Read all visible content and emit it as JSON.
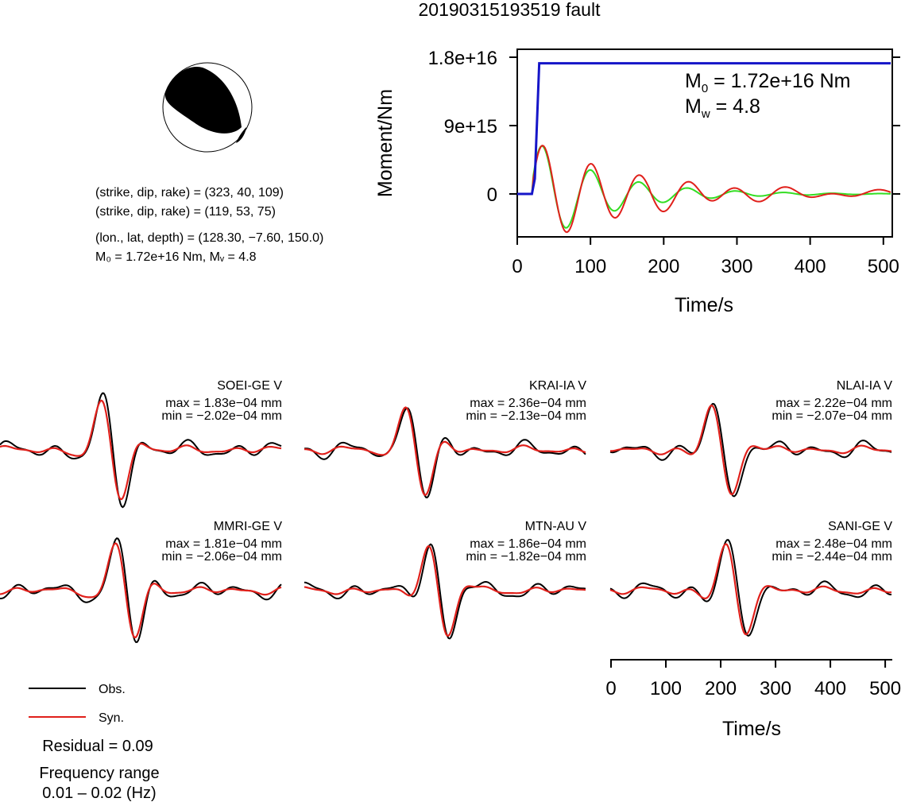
{
  "title": "20190315193519 fault",
  "mechanism": {
    "line1": "(strike, dip, rake) = (323, 40, 109)",
    "line2": "(strike, dip, rake) = (119, 53, 75)",
    "line3": "(lon., lat, depth) = (128.30, −7.60, 150.0)",
    "line4_m0": "M₀ = 1.72e+16 Nm, Mᵥ = 4.8"
  },
  "moment_panel": {
    "m0_label": "M",
    "m0_sub": "0",
    "m0_value": " = 1.72e+16 Nm",
    "mw_label": "M",
    "mw_sub": "w",
    "mw_value": " = 4.8",
    "ylabel": "Moment/Nm",
    "xlabel": "Time/s",
    "yticks": [
      "1.8e+16",
      "9e+15",
      "0"
    ],
    "xticks": [
      "0",
      "100",
      "200",
      "300",
      "400",
      "500"
    ]
  },
  "wave_axis": {
    "xlabel": "Time/s",
    "xticks": [
      "0",
      "100",
      "200",
      "300",
      "400",
      "500"
    ]
  },
  "stations": [
    {
      "name": "SOEI-GE V",
      "max": "max = 1.83e−04 mm",
      "min": "min = −2.02e−04 mm"
    },
    {
      "name": "KRAI-IA V",
      "max": "max = 2.36e−04 mm",
      "min": "min = −2.13e−04 mm"
    },
    {
      "name": "NLAI-IA V",
      "max": "max = 2.22e−04 mm",
      "min": "min = −2.07e−04 mm"
    },
    {
      "name": "MMRI-GE V",
      "max": "max = 1.81e−04 mm",
      "min": "min = −2.06e−04 mm"
    },
    {
      "name": "MTN-AU V",
      "max": "max = 1.86e−04 mm",
      "min": "min = −1.82e−04 mm"
    },
    {
      "name": "SANI-GE V",
      "max": "max = 2.48e−04 mm",
      "min": "min = −2.44e−04 mm"
    }
  ],
  "legend": {
    "obs": "Obs.",
    "syn": "Syn.",
    "residual": "Residual = 0.09",
    "freq_title": "Frequency range",
    "freq_value": "0.01 – 0.02 (Hz)"
  },
  "colors": {
    "observed": "#000000",
    "synthetic": "#e0201b",
    "moment_cumulative": "#1515c8",
    "moment_rate_green": "#33dd22",
    "moment_rate_red": "#e0201b",
    "beachball_fill": "#000000"
  },
  "chart_data": {
    "type": "line",
    "moment_function": {
      "x_range": [
        0,
        510
      ],
      "y_range": [
        -9000000000000000,
        19500000000000000
      ],
      "cumulative_step": {
        "t_start": 20,
        "t_end": 30,
        "level": 17200000000000000
      }
    },
    "waveform_time_range": [
      0,
      510
    ]
  }
}
